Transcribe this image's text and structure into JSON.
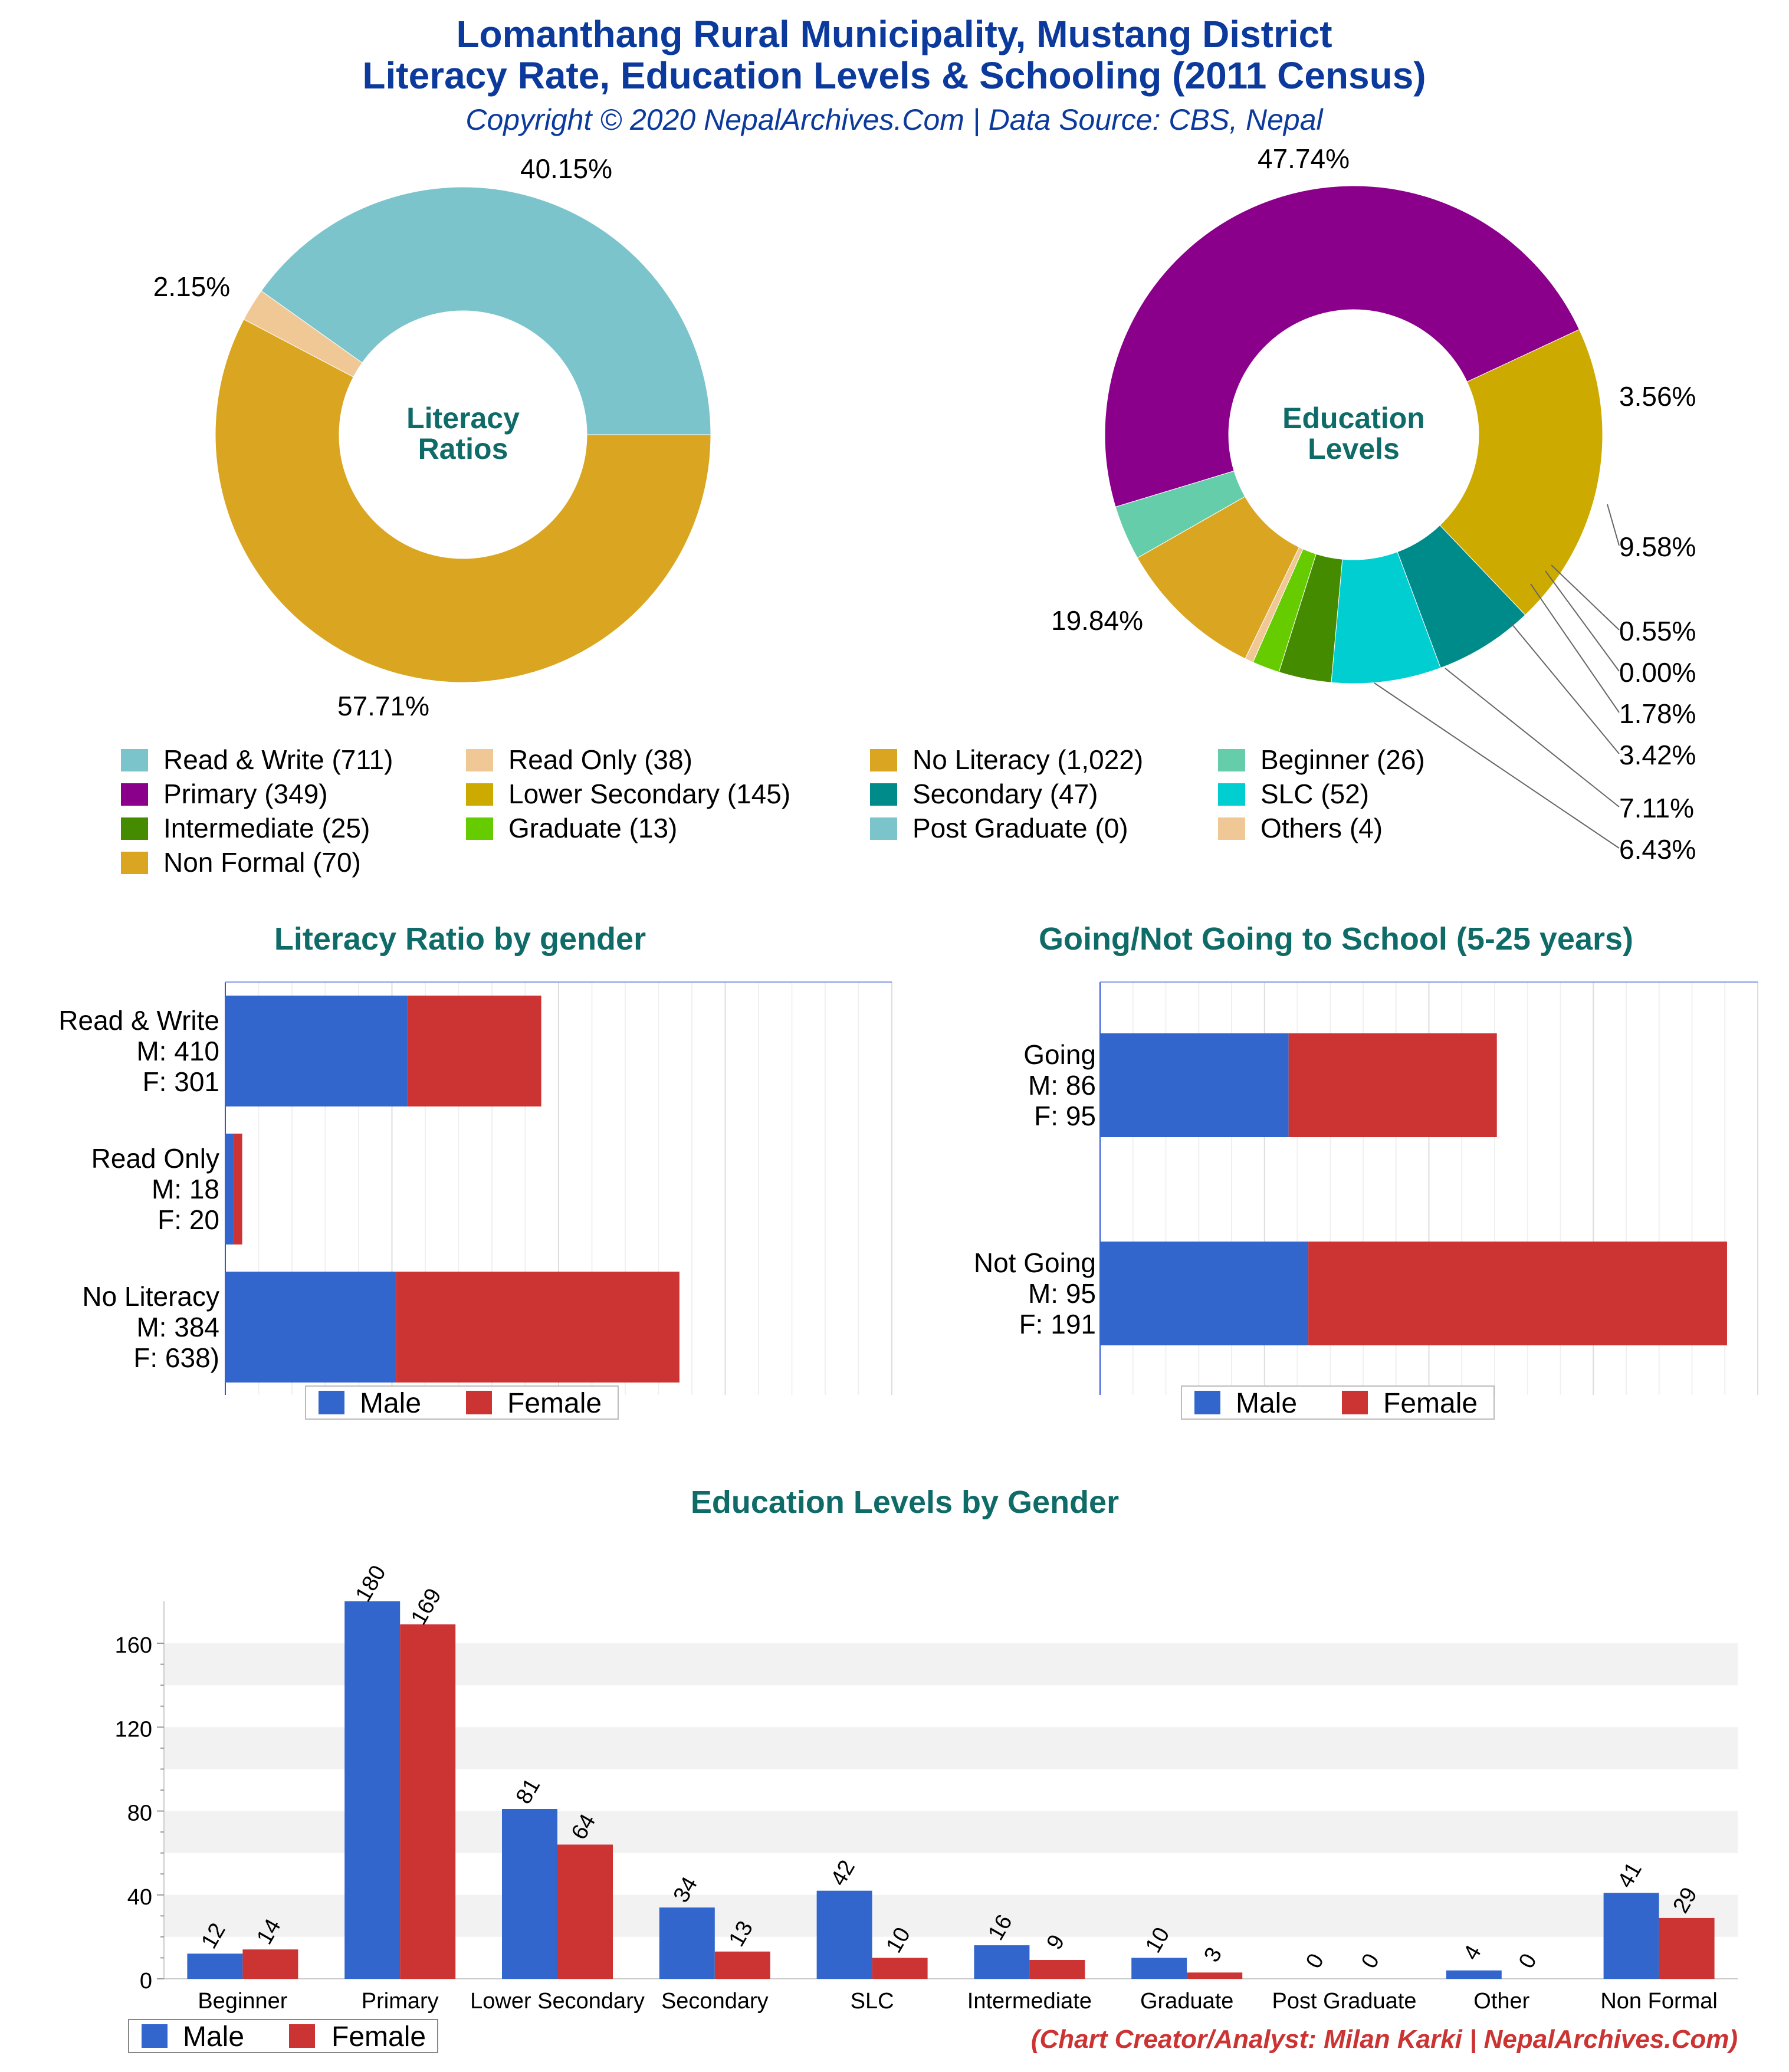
{
  "header": {
    "title_line1": "Lomanthang Rural Municipality, Mustang District",
    "title_line2": "Literacy Rate, Education Levels & Schooling (2011 Census)",
    "copyright": "Copyright © 2020 NepalArchives.Com | Data Source: CBS, Nepal"
  },
  "colors": {
    "title_blue": "#0b3a9c",
    "teal_title": "#0f6b67",
    "male": "#3366cc",
    "female": "#cc3333",
    "credit_red": "#cc3333"
  },
  "chart_data": [
    {
      "type": "pie",
      "center_label": [
        "Literacy",
        "Ratios"
      ],
      "slices": [
        {
          "name": "Read & Write",
          "value": 711,
          "percent_label": "40.15%",
          "color": "#7cc4cc"
        },
        {
          "name": "Read Only",
          "value": 38,
          "percent_label": "2.15%",
          "color": "#f0c896"
        },
        {
          "name": "No Literacy",
          "value": 1022,
          "percent_label": "57.71%",
          "color": "#daa520"
        }
      ]
    },
    {
      "type": "pie",
      "center_label": [
        "Education",
        "Levels"
      ],
      "slices": [
        {
          "name": "Primary",
          "value": 349,
          "percent_label": "47.74%",
          "color": "#8b008b"
        },
        {
          "name": "Beginner",
          "value": 26,
          "percent_label": "3.56%",
          "color": "#66cdaa"
        },
        {
          "name": "Non Formal",
          "value": 70,
          "percent_label": "9.58%",
          "color": "#daa520"
        },
        {
          "name": "Others",
          "value": 4,
          "percent_label": "0.55%",
          "color": "#f0c896"
        },
        {
          "name": "Post Graduate",
          "value": 0,
          "percent_label": "0.00%",
          "color": "#7cc4cc"
        },
        {
          "name": "Graduate",
          "value": 13,
          "percent_label": "1.78%",
          "color": "#66cc00"
        },
        {
          "name": "Intermediate",
          "value": 25,
          "percent_label": "3.42%",
          "color": "#458b00"
        },
        {
          "name": "SLC",
          "value": 52,
          "percent_label": "7.11%",
          "color": "#00ced1"
        },
        {
          "name": "Secondary",
          "value": 47,
          "percent_label": "6.43%",
          "color": "#008b8b"
        },
        {
          "name": "Lower Secondary",
          "value": 145,
          "percent_label": "19.84%",
          "color": "#ccaa00"
        }
      ],
      "legend": [
        {
          "label": "Read & Write (711)",
          "color": "#7cc4cc"
        },
        {
          "label": "Read Only (38)",
          "color": "#f0c896"
        },
        {
          "label": "No Literacy (1,022)",
          "color": "#daa520"
        },
        {
          "label": "Beginner (26)",
          "color": "#66cdaa"
        },
        {
          "label": "Primary (349)",
          "color": "#8b008b"
        },
        {
          "label": "Lower Secondary (145)",
          "color": "#ccaa00"
        },
        {
          "label": "Secondary (47)",
          "color": "#008b8b"
        },
        {
          "label": "SLC (52)",
          "color": "#00ced1"
        },
        {
          "label": "Intermediate (25)",
          "color": "#458b00"
        },
        {
          "label": "Graduate (13)",
          "color": "#66cc00"
        },
        {
          "label": "Post Graduate (0)",
          "color": "#7cc4cc"
        },
        {
          "label": "Others (4)",
          "color": "#f0c896"
        },
        {
          "label": "Non Formal (70)",
          "color": "#daa520"
        }
      ]
    },
    {
      "type": "bar",
      "orientation": "horizontal-stacked",
      "title": "Literacy Ratio by gender",
      "categories": [
        {
          "lines": [
            "Read & Write",
            "M: 410",
            "F: 301"
          ]
        },
        {
          "lines": [
            "Read Only",
            "M: 18",
            "F: 20"
          ]
        },
        {
          "lines": [
            "No Literacy",
            "M: 384",
            "F: 638)"
          ]
        }
      ],
      "series": [
        {
          "name": "Male",
          "values": [
            410,
            18,
            384
          ]
        },
        {
          "name": "Female",
          "values": [
            301,
            20,
            638
          ]
        }
      ],
      "xlim": [
        0,
        1500
      ]
    },
    {
      "type": "bar",
      "orientation": "horizontal-stacked",
      "title": "Going/Not Going to School (5-25 years)",
      "categories": [
        {
          "lines": [
            "Going",
            "M: 86",
            "F: 95"
          ]
        },
        {
          "lines": [
            "Not Going",
            "M: 95",
            "F: 191"
          ]
        }
      ],
      "series": [
        {
          "name": "Male",
          "values": [
            86,
            95
          ]
        },
        {
          "name": "Female",
          "values": [
            95,
            191
          ]
        }
      ],
      "xlim": [
        0,
        300
      ]
    },
    {
      "type": "bar",
      "title": "Education Levels by Gender",
      "categories": [
        "Beginner",
        "Primary",
        "Lower Secondary",
        "Secondary",
        "SLC",
        "Intermediate",
        "Graduate",
        "Post Graduate",
        "Other",
        "Non Formal"
      ],
      "series": [
        {
          "name": "Male",
          "values": [
            12,
            180,
            81,
            34,
            42,
            16,
            10,
            0,
            4,
            41
          ]
        },
        {
          "name": "Female",
          "values": [
            14,
            169,
            64,
            13,
            10,
            9,
            3,
            0,
            0,
            29
          ]
        }
      ],
      "yticks": [
        0,
        40,
        80,
        120,
        160
      ],
      "ylim": [
        0,
        180
      ]
    }
  ],
  "legend_labels": {
    "male": "Male",
    "female": "Female"
  },
  "footer": {
    "credit": "(Chart Creator/Analyst: Milan Karki | NepalArchives.Com)"
  }
}
